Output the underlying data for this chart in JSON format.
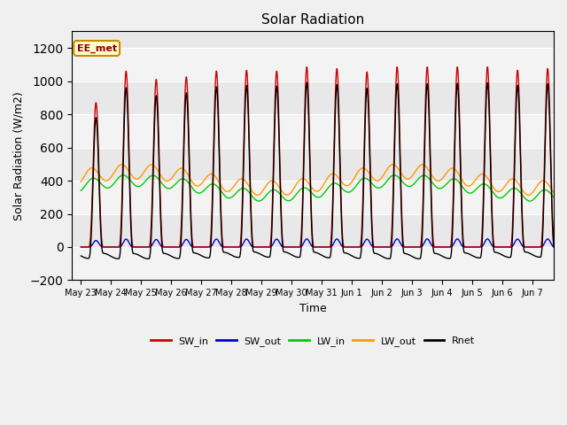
{
  "title": "Solar Radiation",
  "ylabel": "Solar Radiation (W/m2)",
  "xlabel": "Time",
  "annotation_text": "EE_met",
  "ylim": [
    -200,
    1300
  ],
  "yticks": [
    -200,
    0,
    200,
    400,
    600,
    800,
    1000,
    1200
  ],
  "n_days": 16,
  "ppd": 144,
  "day_peaks_SW": [
    870,
    1060,
    1010,
    1025,
    1060,
    1065,
    1060,
    1085,
    1075,
    1055,
    1085,
    1085,
    1085,
    1085,
    1065,
    1075
  ],
  "LW_in_base": 355,
  "LW_in_amplitude": 45,
  "LW_in_period": 9,
  "LW_in_phase": 0.3,
  "LW_in_daily_amp": 35,
  "LW_out_base": 405,
  "LW_out_amplitude": 50,
  "LW_out_period": 9,
  "LW_out_phase": 0.3,
  "LW_out_daily_amp": 45,
  "SW_out_day_peak": 50,
  "bg_color": "#f0f0f0",
  "plot_bg_color": "#e8e8e8",
  "grid_color": "#ffffff",
  "SW_in_color": "#cc0000",
  "SW_out_color": "#0000cc",
  "LW_in_color": "#00cc00",
  "LW_out_color": "#ff9900",
  "Rnet_color": "#000000",
  "legend_labels": [
    "SW_in",
    "SW_out",
    "LW_in",
    "LW_out",
    "Rnet"
  ],
  "x_tick_labels": [
    "May 23",
    "May 24",
    "May 25",
    "May 26",
    "May 27",
    "May 28",
    "May 29",
    "May 30",
    "May 31",
    "Jun 1",
    "Jun 2",
    "Jun 3",
    "Jun 4",
    "Jun 5",
    "Jun 6",
    "Jun 7"
  ]
}
